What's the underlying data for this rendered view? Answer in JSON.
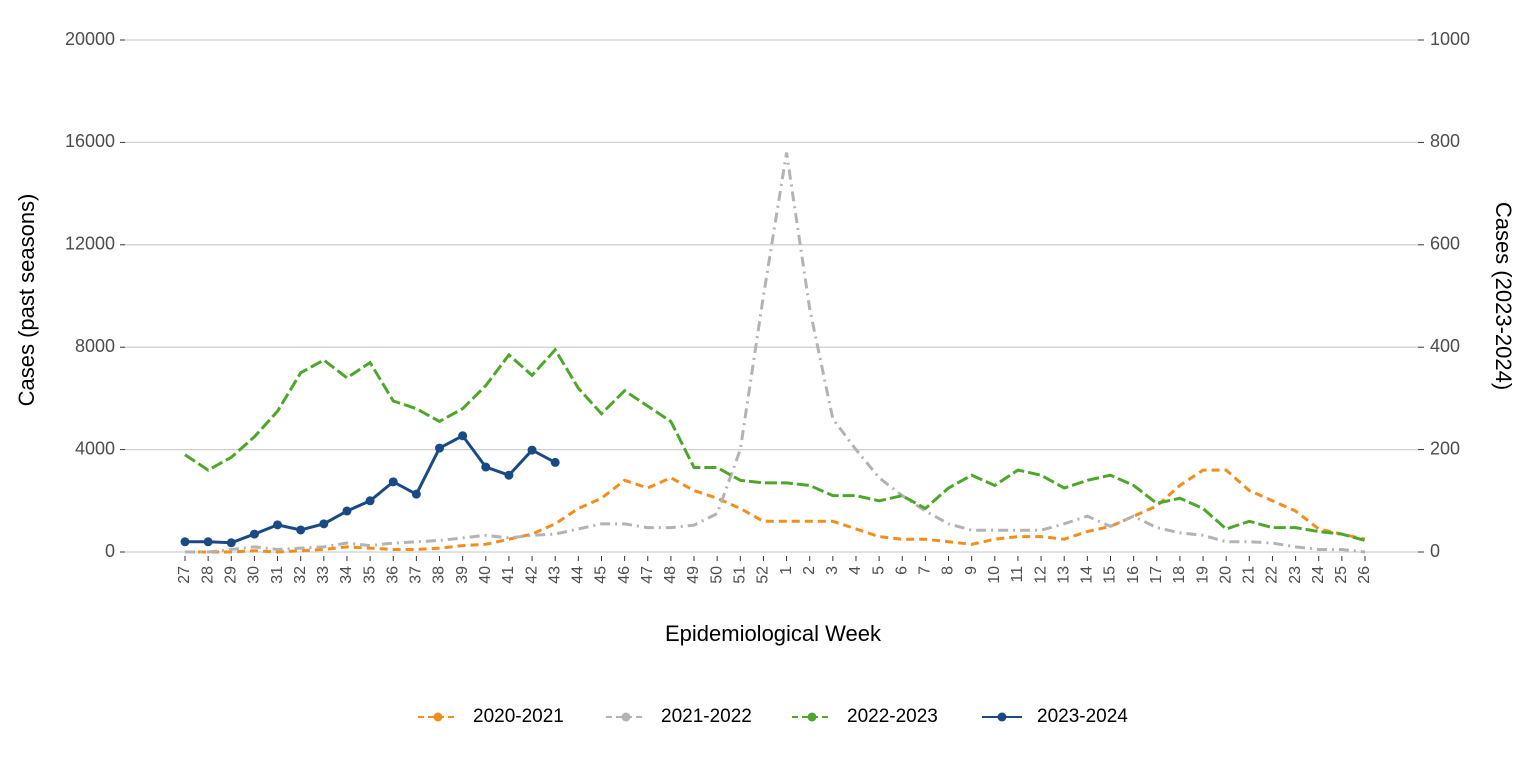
{
  "chart_data": {
    "type": "line",
    "x_label": "Epidemiological Week",
    "y_label": "Cases (past seasons)",
    "y2_label": "Cases (2023-2024)",
    "categories": [
      "27",
      "28",
      "29",
      "30",
      "31",
      "32",
      "33",
      "34",
      "35",
      "36",
      "37",
      "38",
      "39",
      "40",
      "41",
      "42",
      "43",
      "44",
      "45",
      "46",
      "47",
      "48",
      "49",
      "50",
      "51",
      "52",
      "1",
      "2",
      "3",
      "4",
      "5",
      "6",
      "7",
      "8",
      "9",
      "10",
      "11",
      "12",
      "13",
      "14",
      "15",
      "16",
      "17",
      "18",
      "19",
      "20",
      "21",
      "22",
      "23",
      "24",
      "25",
      "26"
    ],
    "series": [
      {
        "name": "2020-2021",
        "color": "#f28e1c",
        "dash": "8,5",
        "values": [
          0,
          0,
          0,
          50,
          0,
          50,
          100,
          200,
          150,
          100,
          100,
          150,
          250,
          300,
          500,
          700,
          1100,
          1700,
          2100,
          2800,
          2500,
          2900,
          2400,
          2100,
          1700,
          1200,
          1200,
          1200,
          1200,
          900,
          600,
          500,
          500,
          400,
          300,
          500,
          600,
          600,
          500,
          800,
          1000,
          1400,
          1800,
          2600,
          3200,
          3200,
          2400,
          2000,
          1600,
          900,
          700,
          500
        ]
      },
      {
        "name": "2021-2022",
        "color": "#b3b3b3",
        "dash": "10,5,2,5",
        "values": [
          0,
          0,
          100,
          200,
          100,
          150,
          200,
          350,
          250,
          350,
          400,
          450,
          550,
          650,
          550,
          650,
          700,
          900,
          1100,
          1100,
          950,
          950,
          1050,
          1500,
          4000,
          10000,
          15600,
          9500,
          5200,
          4000,
          2900,
          2200,
          1600,
          1100,
          850,
          850,
          850,
          850,
          1100,
          1400,
          1000,
          1400,
          950,
          750,
          650,
          400,
          400,
          350,
          200,
          100,
          100,
          0
        ]
      },
      {
        "name": "2022-2023",
        "color": "#4ea72a",
        "dash": "12,4",
        "values": [
          3800,
          3200,
          3700,
          4500,
          5500,
          7000,
          7500,
          6800,
          7400,
          5900,
          5600,
          5100,
          5600,
          6500,
          7700,
          6900,
          7900,
          6400,
          5400,
          6300,
          5700,
          5100,
          3300,
          3300,
          2800,
          2700,
          2700,
          2600,
          2200,
          2200,
          2000,
          2200,
          1700,
          2500,
          3000,
          2600,
          3200,
          3000,
          2500,
          2800,
          3000,
          2600,
          1900,
          2100,
          1700,
          900,
          1200,
          950,
          950,
          800,
          700,
          450
        ]
      },
      {
        "name": "2023-2024",
        "color": "#1a4a85",
        "axis": "y2",
        "markers": true,
        "values": [
          20,
          20,
          18,
          35,
          53,
          43,
          55,
          80,
          100,
          137,
          113,
          203,
          227,
          166,
          150,
          199,
          175,
          null,
          null,
          null,
          null,
          null,
          null,
          null,
          null,
          null,
          null,
          null,
          null,
          null,
          null,
          null,
          null,
          null,
          null,
          null,
          null,
          null,
          null,
          null,
          null,
          null,
          null,
          null,
          null,
          null,
          null,
          null,
          null,
          null,
          null,
          null
        ]
      }
    ],
    "ylim": [
      0,
      20000
    ],
    "yticks": [
      0,
      4000,
      8000,
      12000,
      16000,
      20000
    ],
    "y2lim": [
      0,
      1000
    ],
    "y2ticks": [
      0,
      200,
      400,
      600,
      800,
      1000
    ],
    "grid": true,
    "legend": "bottom"
  }
}
